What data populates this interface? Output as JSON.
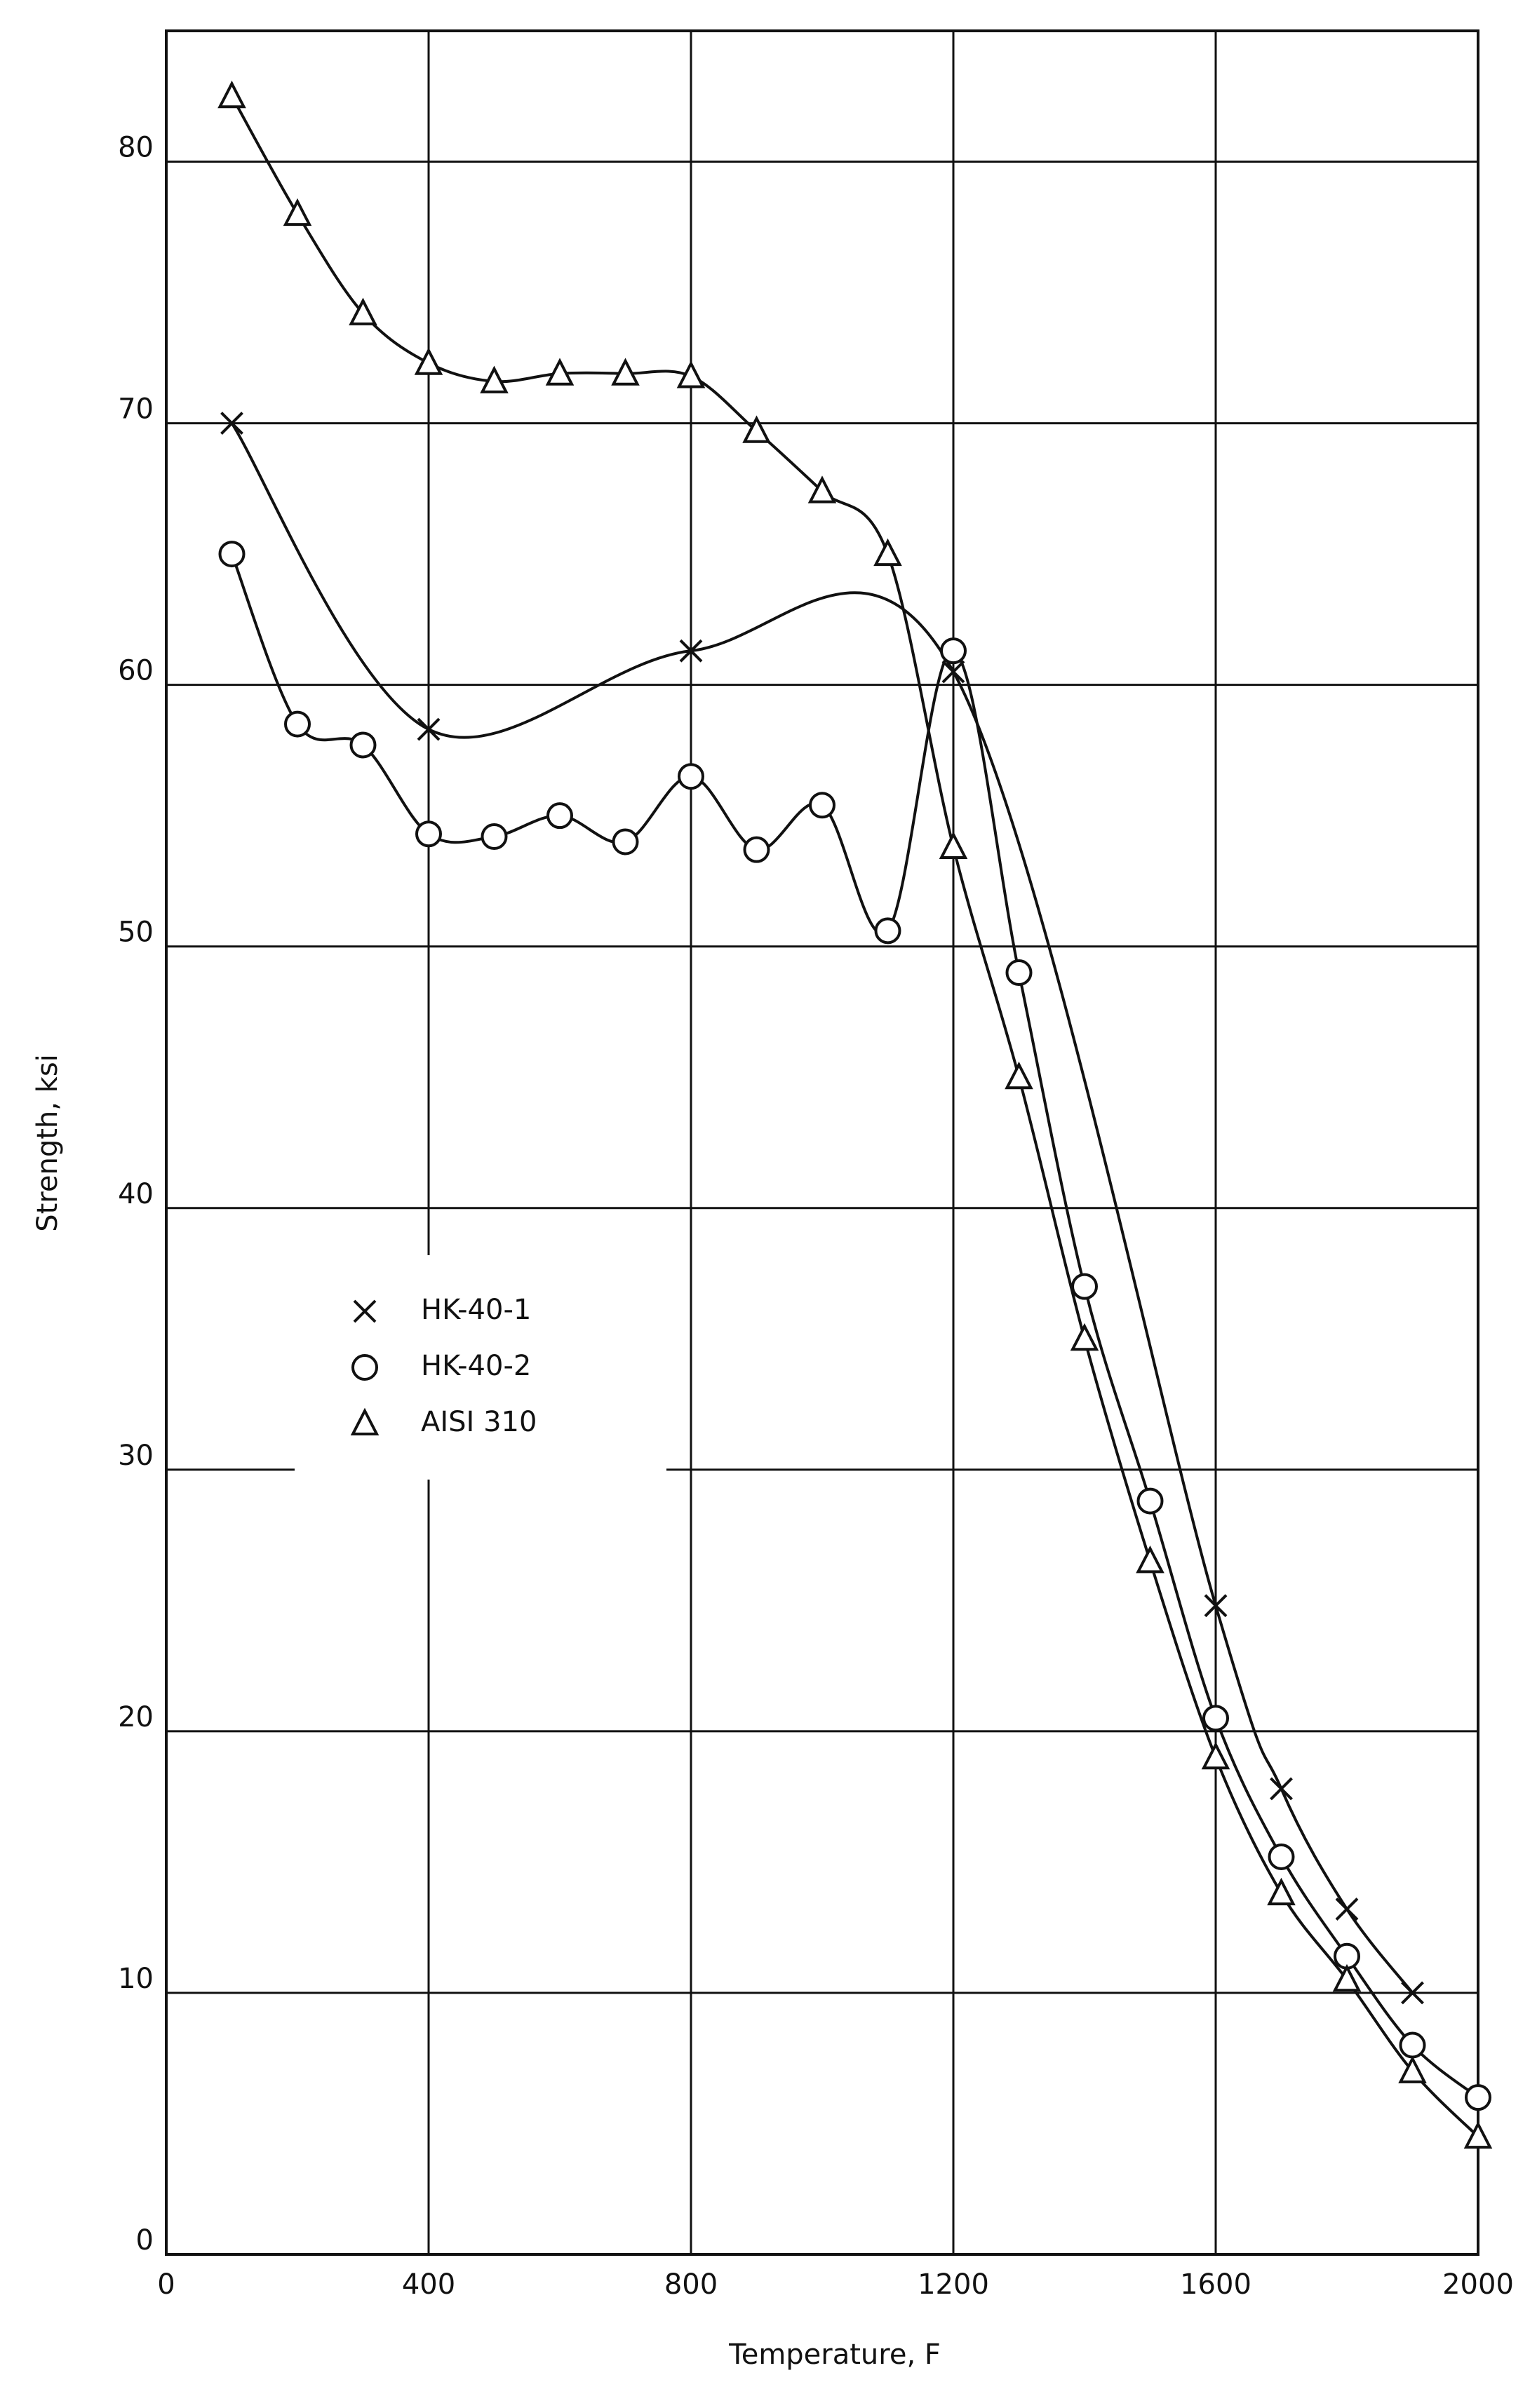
{
  "chart_data": {
    "type": "line",
    "x_label": "Temperature, F",
    "y_label": "Strength, ksi",
    "xlim": [
      0,
      2000
    ],
    "ylim": [
      0,
      85
    ],
    "xticks": [
      0,
      400,
      800,
      1200,
      1600,
      2000
    ],
    "yticks": [
      0,
      10,
      20,
      30,
      40,
      50,
      60,
      70,
      80
    ],
    "grid": true,
    "legend": "center-left",
    "series": [
      {
        "name": "HK-40-1",
        "color": "#111111",
        "marker": "x",
        "x": [
          100,
          400,
          800,
          1200,
          1600,
          1700,
          1800,
          1900
        ],
        "values": [
          70,
          58.3,
          61.3,
          60.5,
          24.8,
          17.8,
          13.2,
          10
        ]
      },
      {
        "name": "HK-40-2",
        "color": "#111111",
        "marker": "o",
        "x": [
          100,
          200,
          300,
          400,
          500,
          600,
          700,
          800,
          900,
          1000,
          1100,
          1200,
          1300,
          1400,
          1500,
          1600,
          1700,
          1800,
          1900,
          2000
        ],
        "values": [
          65,
          58.5,
          57.7,
          54.3,
          54.2,
          55,
          54,
          56.5,
          53.7,
          55.4,
          50.6,
          61.3,
          49,
          37,
          28.8,
          20.5,
          15.2,
          11.4,
          8,
          6
        ]
      },
      {
        "name": "AISI 310",
        "color": "#111111",
        "marker": "^",
        "x": [
          100,
          200,
          300,
          400,
          500,
          600,
          700,
          800,
          900,
          1000,
          1100,
          1200,
          1300,
          1400,
          1500,
          1600,
          1700,
          1800,
          1900,
          2000
        ],
        "values": [
          82.5,
          78,
          74.2,
          72.3,
          71.6,
          71.9,
          71.9,
          71.8,
          69.7,
          67.4,
          65,
          53.8,
          45,
          35,
          26.5,
          19,
          13.8,
          10.5,
          7,
          4.5
        ]
      }
    ]
  }
}
